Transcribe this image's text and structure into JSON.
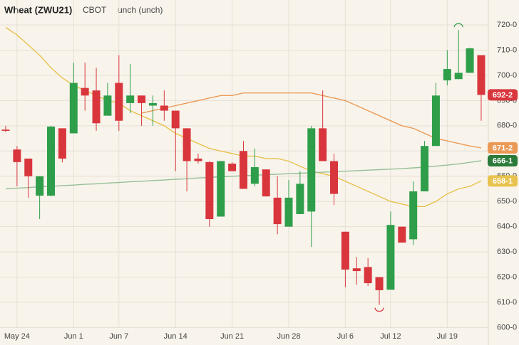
{
  "chart_data": {
    "type": "candlestick",
    "title": "Wheat (ZWU21)",
    "exchange": "CBOT",
    "change": "unch (unch)",
    "categories": [
      null,
      "May 24",
      null,
      null,
      null,
      null,
      "Jun 1",
      null,
      null,
      null,
      "Jun 7",
      null,
      null,
      null,
      null,
      "Jun 14",
      null,
      null,
      null,
      null,
      "Jun 21",
      null,
      null,
      null,
      null,
      "Jun 28",
      null,
      null,
      null,
      null,
      "Jul 6",
      null,
      null,
      null,
      "Jul 12",
      null,
      null,
      null,
      null,
      "Jul 19",
      null,
      null,
      null
    ],
    "open": [
      678.5,
      670.6,
      667,
      652.3,
      652.3,
      679,
      677,
      695,
      694,
      684,
      697,
      689,
      692,
      688,
      688,
      686,
      679,
      667,
      665.6,
      644,
      665,
      670,
      657,
      662.7,
      651.5,
      640,
      645,
      646,
      679,
      666,
      638,
      623.5,
      624,
      620,
      615,
      640,
      635,
      654,
      672,
      698,
      698.5,
      701,
      708
    ],
    "high": [
      680,
      672,
      667,
      660,
      680,
      679,
      705,
      705,
      703,
      697,
      708,
      704.5,
      692,
      692,
      694,
      686,
      679,
      669,
      666,
      666,
      665.6,
      674,
      671,
      662.7,
      660,
      658.5,
      662,
      680,
      694,
      669,
      638,
      628,
      627.5,
      620,
      646,
      640,
      658,
      674,
      697,
      710,
      718,
      711,
      708
    ],
    "low": [
      677.5,
      656,
      651.5,
      643,
      652,
      665.5,
      677,
      686,
      678,
      684,
      678,
      685,
      680,
      680,
      682,
      662,
      654,
      665,
      640,
      644,
      662,
      655,
      656,
      652,
      637,
      640,
      645,
      632,
      666,
      648.6,
      616,
      617,
      616.5,
      609,
      615,
      633.7,
      632.7,
      654,
      672,
      696,
      698.5,
      701,
      682
    ],
    "close": [
      678,
      665.6,
      660,
      660,
      679.7,
      667,
      697,
      692,
      681,
      692,
      682,
      692,
      689,
      689,
      686,
      679,
      666,
      666,
      643,
      666,
      662,
      655,
      663.6,
      652,
      641,
      651.5,
      657,
      679,
      666,
      653,
      623,
      622.4,
      617.6,
      614.8,
      640.7,
      633.7,
      654,
      672,
      692,
      702.5,
      701,
      710.7,
      692.25
    ],
    "close_label": "692-2",
    "up_color": "#2f9e4a",
    "down_color": "#d8363c",
    "lines": [
      {
        "color": "#e8c24e",
        "last_label": "658-1",
        "values": [
          719,
          716,
          712,
          708,
          703,
          699,
          696,
          694,
          692,
          690,
          689,
          686,
          684,
          682,
          680,
          677,
          675,
          673,
          671,
          670,
          669,
          668,
          668,
          667,
          667,
          666,
          664,
          662,
          661,
          660,
          658,
          656,
          654,
          652,
          650,
          649,
          648,
          648,
          650,
          653,
          655,
          656,
          658.125
        ]
      },
      {
        "color": "#eb9a55",
        "last_label": "671-2",
        "values": [
          null,
          null,
          null,
          null,
          null,
          null,
          null,
          null,
          null,
          null,
          null,
          null,
          685,
          686,
          687,
          688,
          689,
          690,
          691,
          692,
          692,
          693,
          693,
          693,
          693,
          693,
          693,
          693,
          692,
          691,
          690,
          688,
          686,
          684,
          682,
          680,
          679,
          677,
          675,
          674,
          673,
          672,
          671.25
        ]
      },
      {
        "color": "#97bf97",
        "badge_color": "#2b7a3a",
        "last_label": "666-1",
        "values": [
          655,
          655.3,
          655.5,
          655.8,
          656,
          656.3,
          656.5,
          656.8,
          657,
          657.3,
          657.5,
          657.8,
          658,
          658.3,
          658.5,
          658.8,
          659,
          659.3,
          659.5,
          659.8,
          660,
          660.2,
          660.4,
          660.6,
          660.8,
          661,
          661.2,
          661.4,
          661.6,
          661.8,
          662,
          662.2,
          662.4,
          662.6,
          662.8,
          663,
          663.3,
          663.6,
          664,
          664.4,
          664.9,
          665.5,
          666.125
        ]
      }
    ],
    "ylim": [
      600,
      720
    ],
    "yticks": [
      {
        "value": 600,
        "label": "600-0"
      },
      {
        "value": 610,
        "label": "610-0"
      },
      {
        "value": 620,
        "label": "620-0"
      },
      {
        "value": 630,
        "label": "630-0"
      },
      {
        "value": 640,
        "label": "640-0"
      },
      {
        "value": 650,
        "label": "650-0"
      },
      {
        "value": 660,
        "label": "660-0"
      },
      {
        "value": 670,
        "label": "670-0"
      },
      {
        "value": 680,
        "label": "680-0"
      },
      {
        "value": 690,
        "label": "690-0"
      },
      {
        "value": 700,
        "label": "700-0"
      },
      {
        "value": 710,
        "label": "710-0"
      },
      {
        "value": 720,
        "label": "720-0"
      }
    ],
    "grid": true
  }
}
